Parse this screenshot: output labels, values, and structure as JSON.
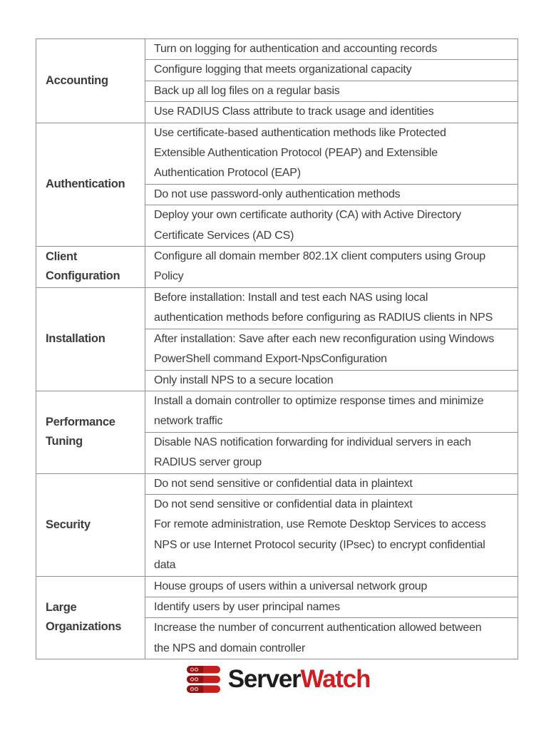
{
  "table": {
    "sections": [
      {
        "category": "Accounting",
        "items": [
          "Turn on logging for authentication and accounting records",
          "Configure logging that meets organizational capacity",
          "Back up all log files on a regular basis",
          "Use RADIUS Class attribute to track usage and identities"
        ]
      },
      {
        "category": "Authentication",
        "items": [
          "Use certificate-based authentication methods like Protected\nExtensible Authentication Protocol (PEAP) and Extensible\nAuthentication Protocol (EAP)",
          "Do not use password-only authentication methods",
          "Deploy your own certificate authority (CA) with Active Directory\nCertificate Services (AD CS)"
        ]
      },
      {
        "category": "Client\nConfiguration",
        "items": [
          "Configure all domain member 802.1X client computers using Group\nPolicy"
        ]
      },
      {
        "category": "Installation",
        "items": [
          "Before installation: Install and test each NAS using local\nauthentication methods before configuring as RADIUS clients in NPS",
          "After installation: Save after each new reconfiguration using Windows\nPowerShell command Export-NpsConfiguration",
          "Only install NPS to a secure location"
        ]
      },
      {
        "category": "Performance\nTuning",
        "items": [
          "Install a domain controller to optimize response times and minimize\nnetwork traffic",
          "Disable NAS notification forwarding for individual servers in each\nRADIUS server group"
        ]
      },
      {
        "category": "Security",
        "items": [
          "Do not send sensitive or confidential data in plaintext",
          "Do not send sensitive or confidential data in plaintext\nFor remote administration, use Remote Desktop Services to access\nNPS or use Internet Protocol security (IPsec) to encrypt confidential\ndata"
        ]
      },
      {
        "category": "Large\nOrganizations",
        "items": [
          "House groups of users within a universal network group",
          "Identify users by user principal names",
          "Increase the number of concurrent authentication allowed between\nthe NPS and domain controller"
        ]
      }
    ]
  },
  "logo": {
    "server": "Server",
    "watch": "Watch",
    "icon": "server-stack-icon",
    "colors": {
      "server_text": "#1d1d1d",
      "watch_text": "#cd1e22",
      "icon_bright_red": "#c41e1e",
      "icon_dark_red": "#8e1212"
    }
  },
  "style": {
    "border_color": "#8f8f8f",
    "text_color": "#3c3c3c"
  }
}
